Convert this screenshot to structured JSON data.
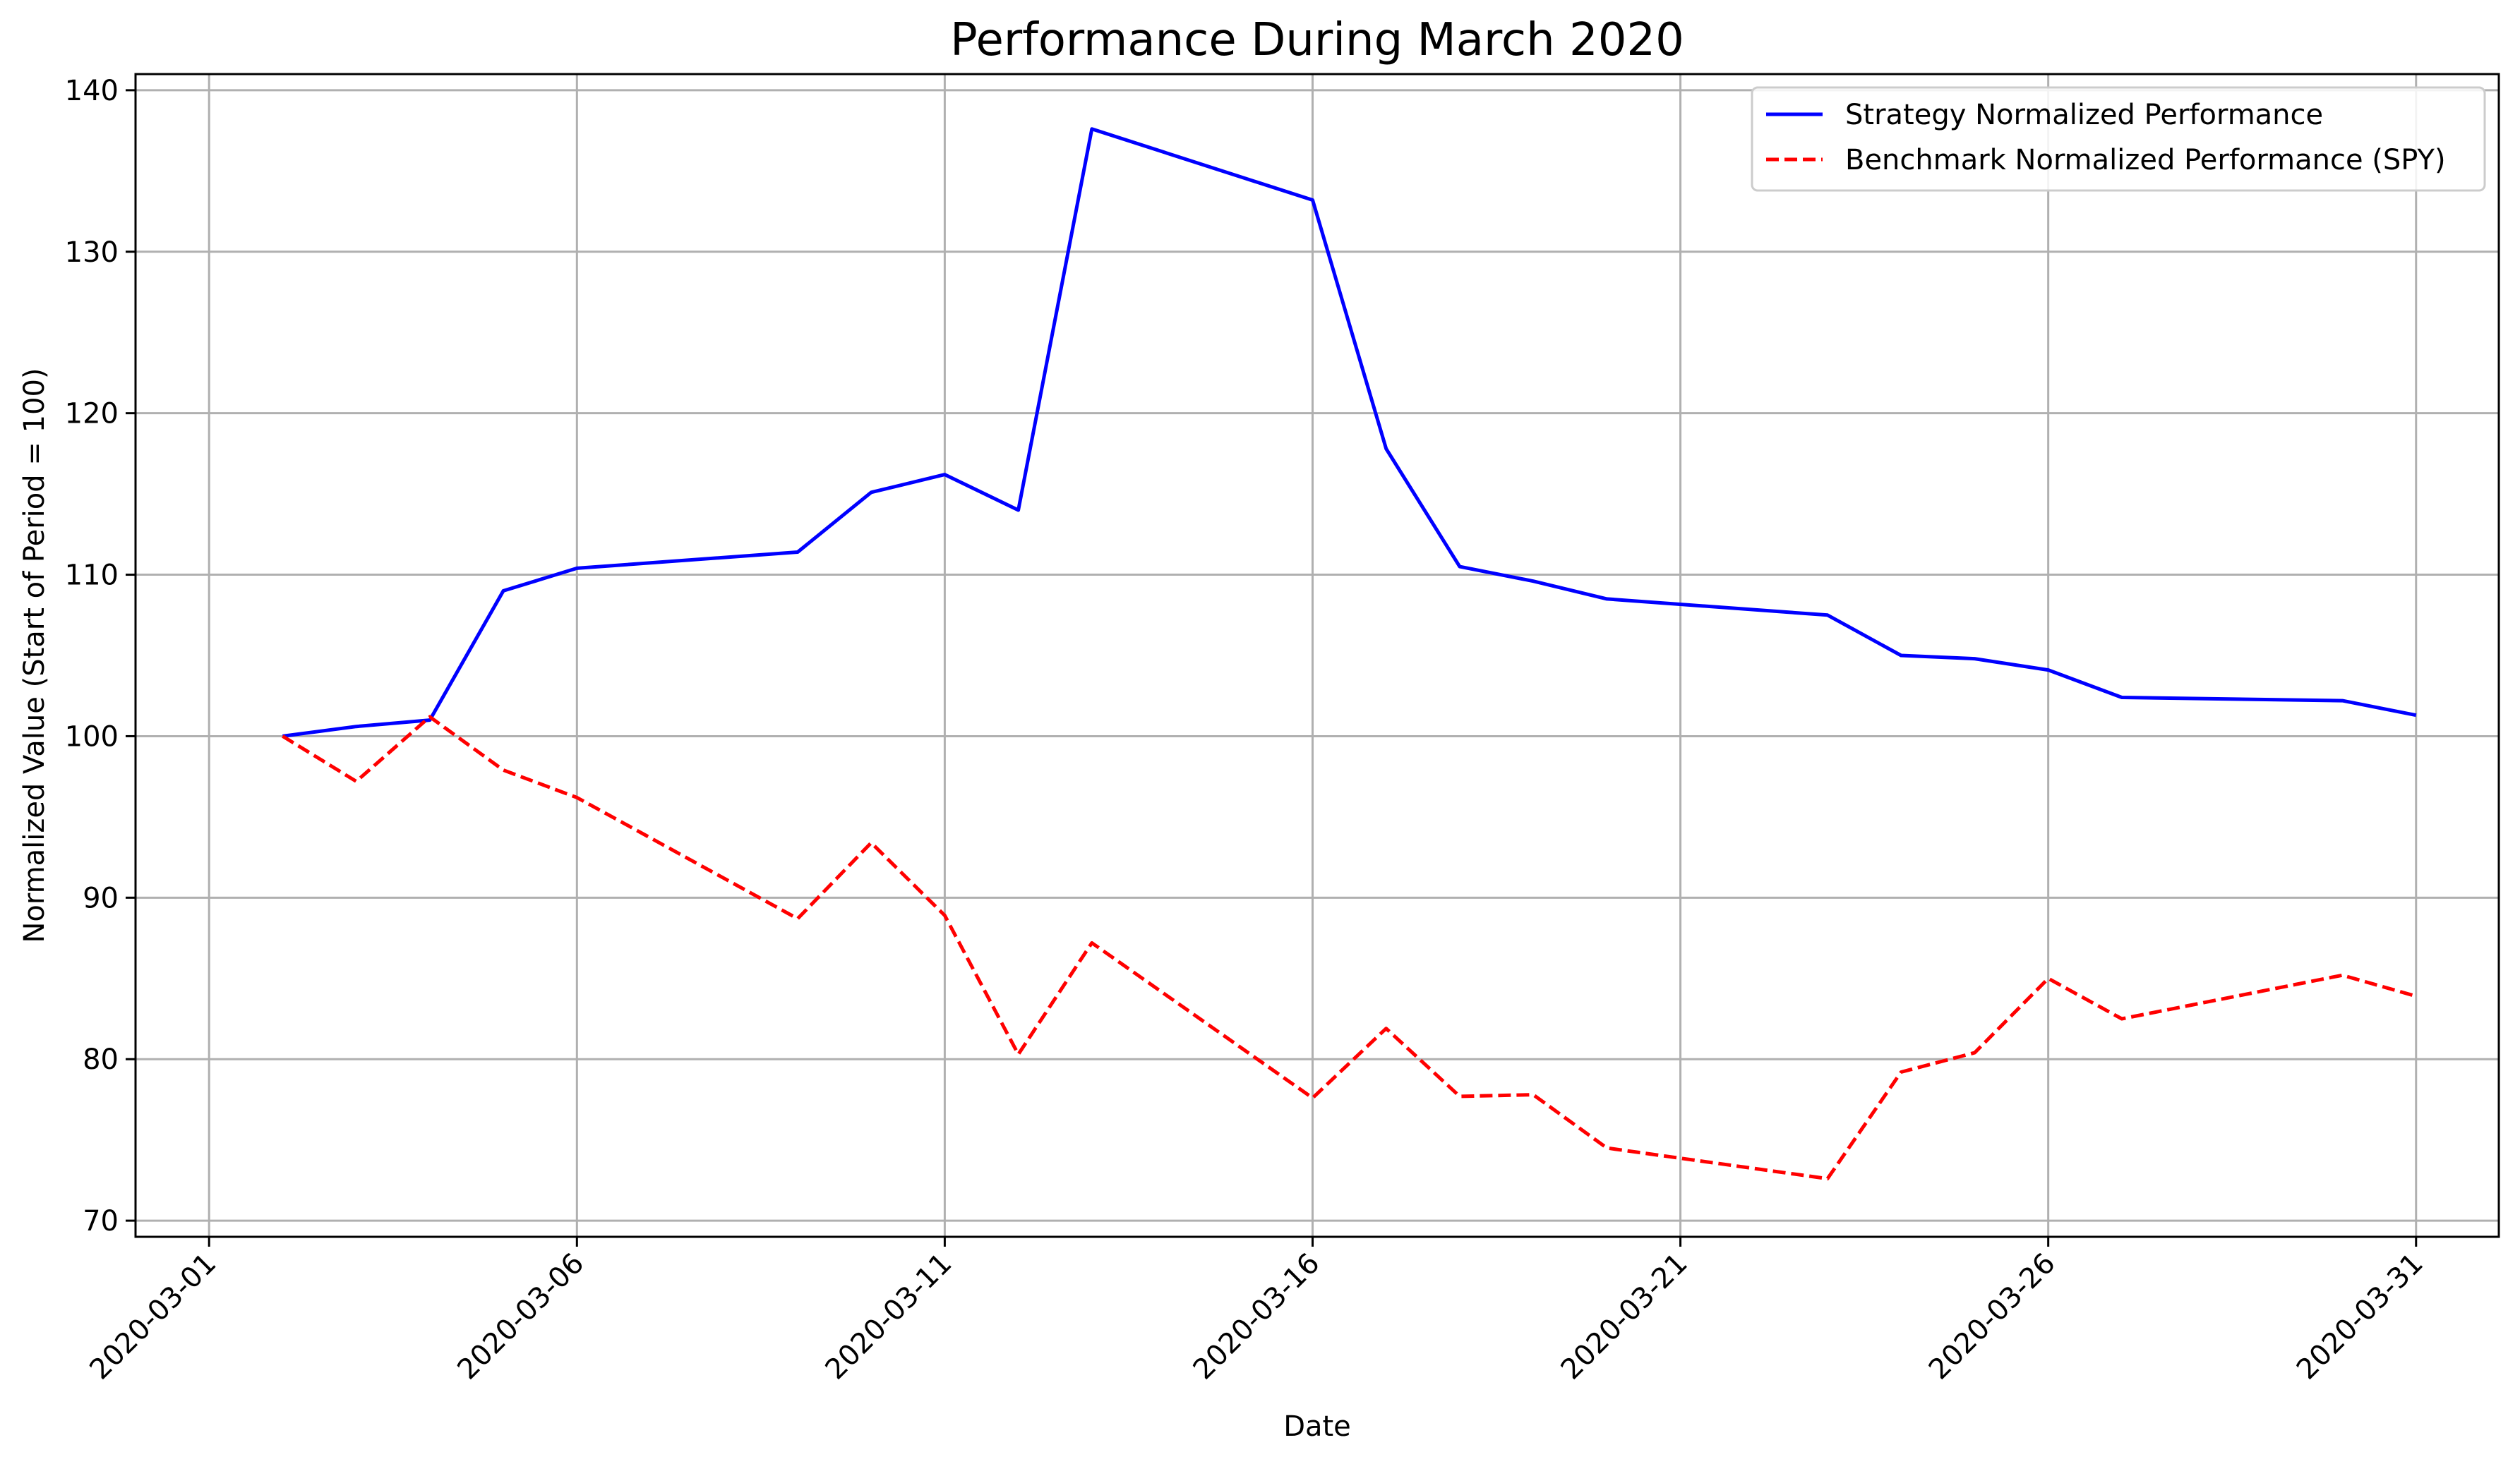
{
  "chart_data": {
    "type": "line",
    "title": "Performance During March 2020",
    "xlabel": "Date",
    "ylabel": "Normalized Value (Start of Period = 100)",
    "ylim": [
      69,
      141
    ],
    "xlim": [
      "2020-02-29T00:00",
      "2020-04-01T03:00"
    ],
    "y_ticks": [
      70,
      80,
      90,
      100,
      110,
      120,
      130,
      140
    ],
    "x_ticks": [
      "2020-03-01",
      "2020-03-06",
      "2020-03-11",
      "2020-03-16",
      "2020-03-21",
      "2020-03-26",
      "2020-03-31"
    ],
    "grid": true,
    "legend_position": "top-right",
    "series": [
      {
        "name": "Strategy Normalized Performance",
        "color": "#0000ff",
        "style": "solid",
        "points": [
          [
            "2020-03-02",
            100.0
          ],
          [
            "2020-03-03",
            100.6
          ],
          [
            "2020-03-04",
            101.0
          ],
          [
            "2020-03-05",
            109.0
          ],
          [
            "2020-03-06",
            110.4
          ],
          [
            "2020-03-09",
            111.4
          ],
          [
            "2020-03-10",
            115.1
          ],
          [
            "2020-03-11",
            116.2
          ],
          [
            "2020-03-12",
            114.0
          ],
          [
            "2020-03-13",
            137.6
          ],
          [
            "2020-03-16",
            133.2
          ],
          [
            "2020-03-17",
            117.8
          ],
          [
            "2020-03-18",
            110.5
          ],
          [
            "2020-03-19",
            109.6
          ],
          [
            "2020-03-20",
            108.5
          ],
          [
            "2020-03-23",
            107.5
          ],
          [
            "2020-03-24",
            105.0
          ],
          [
            "2020-03-25",
            104.8
          ],
          [
            "2020-03-26",
            104.1
          ],
          [
            "2020-03-27",
            102.4
          ],
          [
            "2020-03-30",
            102.2
          ],
          [
            "2020-03-31",
            101.3
          ]
        ]
      },
      {
        "name": "Benchmark Normalized Performance (SPY)",
        "color": "#ff0000",
        "style": "dashed",
        "points": [
          [
            "2020-03-02",
            100.0
          ],
          [
            "2020-03-03",
            97.2
          ],
          [
            "2020-03-04",
            101.2
          ],
          [
            "2020-03-05",
            97.9
          ],
          [
            "2020-03-06",
            96.2
          ],
          [
            "2020-03-09",
            88.7
          ],
          [
            "2020-03-10",
            93.4
          ],
          [
            "2020-03-11",
            88.9
          ],
          [
            "2020-03-12",
            80.3
          ],
          [
            "2020-03-13",
            87.2
          ],
          [
            "2020-03-16",
            77.6
          ],
          [
            "2020-03-17",
            81.9
          ],
          [
            "2020-03-18",
            77.7
          ],
          [
            "2020-03-19",
            77.8
          ],
          [
            "2020-03-20",
            74.5
          ],
          [
            "2020-03-23",
            72.6
          ],
          [
            "2020-03-24",
            79.2
          ],
          [
            "2020-03-25",
            80.4
          ],
          [
            "2020-03-26",
            85.0
          ],
          [
            "2020-03-27",
            82.5
          ],
          [
            "2020-03-30",
            85.2
          ],
          [
            "2020-03-31",
            83.9
          ]
        ]
      }
    ]
  }
}
